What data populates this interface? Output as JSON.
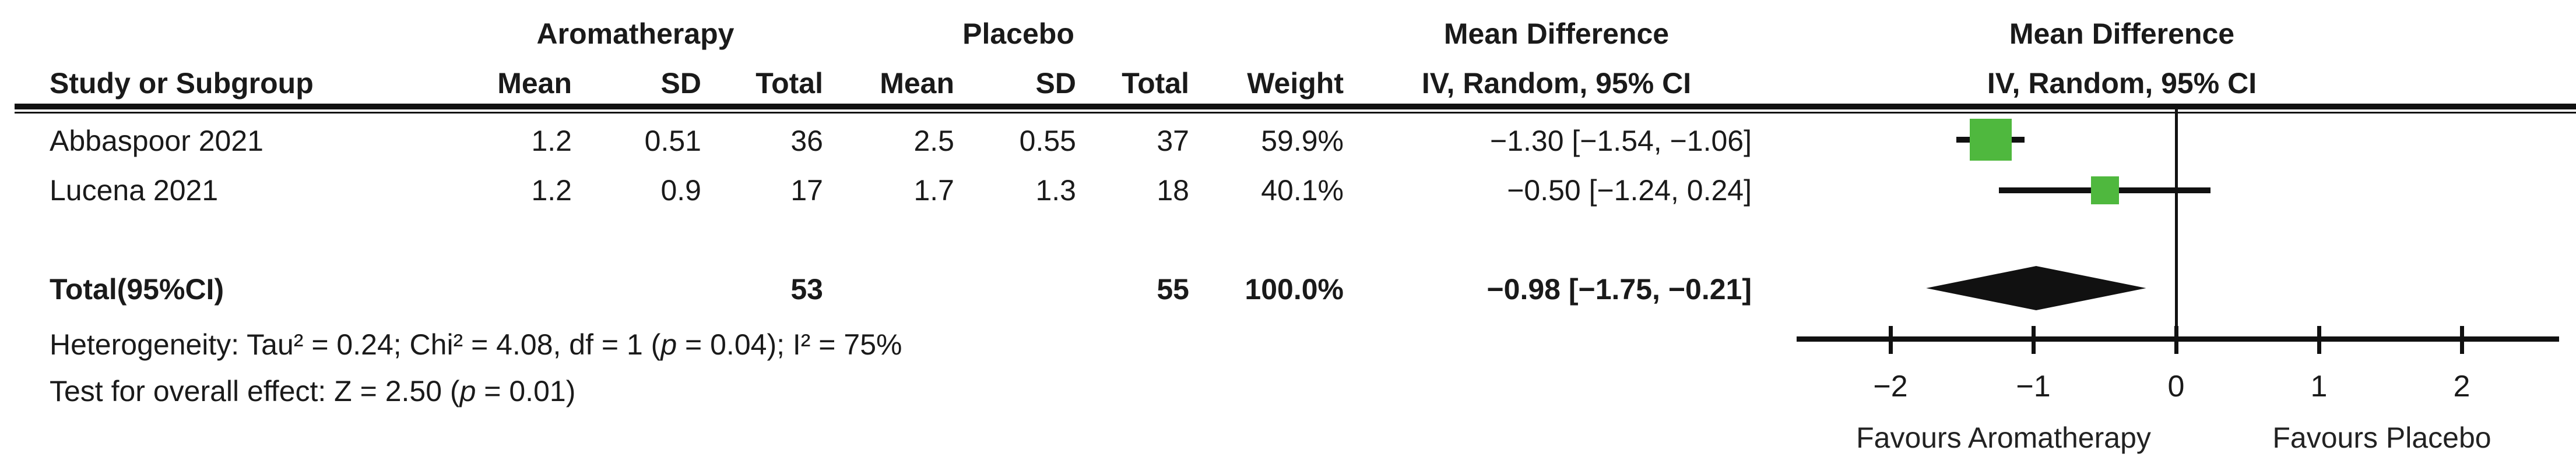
{
  "colors": {
    "marker_green": "#4fb83e",
    "diamond_black": "#111111",
    "line_black": "#111111",
    "text": "#1a1a1a"
  },
  "header": {
    "study_col": "Study or Subgroup",
    "group_experimental": "Aromatherapy",
    "group_control": "Placebo",
    "mean": "Mean",
    "sd": "SD",
    "total": "Total",
    "weight": "Weight",
    "md_title": "Mean Difference",
    "md_sub": "IV, Random, 95% CI",
    "plot_title": "Mean Difference",
    "plot_sub": "IV, Random, 95% CI"
  },
  "rows": [
    {
      "study": "Abbaspoor 2021",
      "e_mean": "1.2",
      "e_sd": "0.51",
      "e_total": "36",
      "c_mean": "2.5",
      "c_sd": "0.55",
      "c_total": "37",
      "weight": "59.9%",
      "md_ci": "−1.30 [−1.54, −1.06]"
    },
    {
      "study": "Lucena 2021",
      "e_mean": "1.2",
      "e_sd": "0.9",
      "e_total": "17",
      "c_mean": "1.7",
      "c_sd": "1.3",
      "c_total": "18",
      "weight": "40.1%",
      "md_ci": "−0.50 [−1.24, 0.24]"
    }
  ],
  "total_row": {
    "label": "Total(95%CI)",
    "e_total": "53",
    "c_total": "55",
    "weight": "100.0%",
    "md_ci": "−0.98 [−1.75, −0.21]"
  },
  "footer": {
    "het_prefix": "Heterogeneity: Tau² = 0.24; Chi² = 4.08, df = 1 (",
    "het_p": "p",
    "het_suffix": " = 0.04); I² = 75%",
    "eff_prefix": "Test for overall effect: Z = 2.50 (",
    "eff_p": "p",
    "eff_suffix": " = 0.01)"
  },
  "axis": {
    "tick_labels": [
      "−2",
      "−1",
      "0",
      "1",
      "2"
    ],
    "favours_left": "Favours Aromatherapy",
    "favours_right": "Favours Placebo"
  },
  "chart_data": {
    "type": "forest",
    "effect_measure": "Mean Difference",
    "method": "IV, Random, 95% CI",
    "groups": [
      "Aromatherapy",
      "Placebo"
    ],
    "studies": [
      {
        "name": "Abbaspoor 2021",
        "experimental": {
          "mean": 1.2,
          "sd": 0.51,
          "total": 36
        },
        "control": {
          "mean": 2.5,
          "sd": 0.55,
          "total": 37
        },
        "weight_pct": 59.9,
        "md": -1.3,
        "ci_low": -1.54,
        "ci_high": -1.06
      },
      {
        "name": "Lucena 2021",
        "experimental": {
          "mean": 1.2,
          "sd": 0.9,
          "total": 17
        },
        "control": {
          "mean": 1.7,
          "sd": 1.3,
          "total": 18
        },
        "weight_pct": 40.1,
        "md": -0.5,
        "ci_low": -1.24,
        "ci_high": 0.24
      }
    ],
    "total": {
      "e_total": 53,
      "c_total": 55,
      "weight_pct": 100.0,
      "md": -0.98,
      "ci_low": -1.75,
      "ci_high": -0.21
    },
    "heterogeneity": {
      "tau2": 0.24,
      "chi2": 4.08,
      "df": 1,
      "p": 0.04,
      "i2_pct": 75
    },
    "overall_effect": {
      "z": 2.5,
      "p": 0.01
    },
    "axis": {
      "ticks": [
        -2,
        -1,
        0,
        1,
        2
      ],
      "range": [
        -2.67,
        2.67
      ],
      "zero_line": 0,
      "favours_left": "Favours Aromatherapy",
      "favours_right": "Favours Placebo"
    },
    "legend_position": "bottom"
  }
}
